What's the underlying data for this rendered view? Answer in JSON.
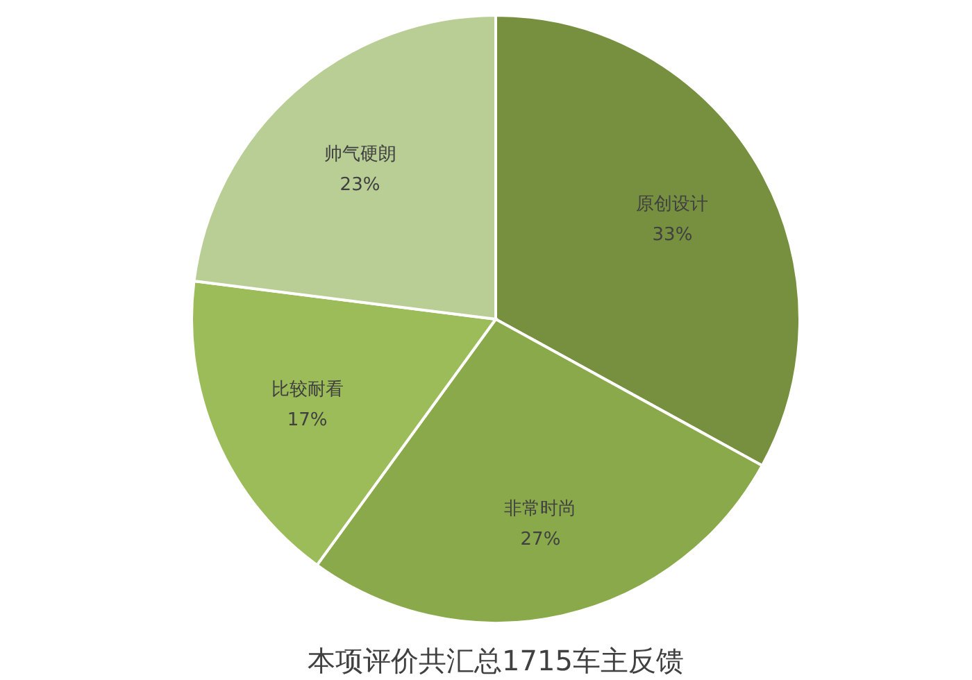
{
  "chart_data": {
    "type": "pie",
    "title": "本项评价共汇总1715车主反馈",
    "categories": [
      "原创设计",
      "非常时尚",
      "比较耐看",
      "帅气硬朗"
    ],
    "values": [
      33,
      27,
      17,
      23
    ],
    "colors": [
      "#76903f",
      "#8aa94b",
      "#9cbb59",
      "#b8ce94"
    ],
    "value_labels": [
      "33%",
      "27%",
      "17%",
      "23%"
    ]
  }
}
